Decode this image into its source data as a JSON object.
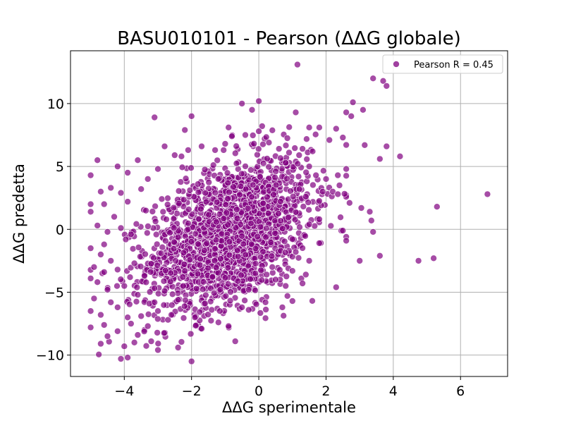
{
  "chart_data": {
    "type": "scatter",
    "title": "BASU010101 - Pearson (ΔΔG globale)",
    "xlabel": "ΔΔG sperimentale",
    "ylabel": "ΔΔG predetta",
    "xlim": [
      -5.6,
      7.4
    ],
    "ylim": [
      -11.7,
      14.2
    ],
    "xticks": [
      -4,
      -2,
      0,
      2,
      4,
      6
    ],
    "xtick_labels": [
      "−4",
      "−2",
      "0",
      "2",
      "4",
      "6"
    ],
    "yticks": [
      -10,
      -5,
      0,
      5,
      10
    ],
    "ytick_labels": [
      "−10",
      "−5",
      "0",
      "5",
      "10"
    ],
    "grid": true,
    "legend": {
      "position": "top-right",
      "entries": [
        "Pearson R = 0.45"
      ]
    },
    "point_color": "#800080",
    "point_opacity": 0.7,
    "dense_cloud": {
      "n": 1800,
      "center": [
        -0.9,
        -0.4
      ],
      "sd": [
        1.2,
        2.7
      ],
      "slope": 1.0
    },
    "points": [
      [
        1.15,
        13.1
      ],
      [
        2.8,
        10.1
      ],
      [
        3.4,
        12.0
      ],
      [
        3.7,
        11.8
      ],
      [
        3.8,
        11.4
      ],
      [
        2.6,
        9.3
      ],
      [
        2.75,
        9.0
      ],
      [
        3.1,
        9.5
      ],
      [
        -0.5,
        10.0
      ],
      [
        -0.2,
        9.5
      ],
      [
        0.0,
        10.2
      ],
      [
        -3.1,
        8.9
      ],
      [
        -2.0,
        9.0
      ],
      [
        0.1,
        8.2
      ],
      [
        -0.9,
        8.1
      ],
      [
        1.1,
        9.3
      ],
      [
        1.5,
        8.1
      ],
      [
        1.8,
        8.1
      ],
      [
        2.3,
        8.0
      ],
      [
        2.5,
        7.3
      ],
      [
        2.1,
        7.1
      ],
      [
        1.3,
        6.4
      ],
      [
        1.6,
        6.2
      ],
      [
        1.2,
        5.9
      ],
      [
        3.8,
        6.6
      ],
      [
        4.2,
        5.8
      ],
      [
        3.6,
        5.6
      ],
      [
        3.15,
        6.7
      ],
      [
        2.6,
        4.8
      ],
      [
        2.35,
        4.3
      ],
      [
        2.4,
        3.5
      ],
      [
        2.2,
        3.0
      ],
      [
        2.35,
        2.8
      ],
      [
        2.7,
        2.1
      ],
      [
        3.05,
        1.7
      ],
      [
        3.3,
        1.4
      ],
      [
        3.35,
        0.7
      ],
      [
        3.4,
        -0.2
      ],
      [
        2.6,
        -0.6
      ],
      [
        2.5,
        -0.1
      ],
      [
        2.6,
        -0.9
      ],
      [
        3.0,
        -2.5
      ],
      [
        3.6,
        -2.1
      ],
      [
        2.3,
        -4.6
      ],
      [
        4.75,
        -2.5
      ],
      [
        5.2,
        -2.3
      ],
      [
        5.3,
        1.8
      ],
      [
        6.8,
        2.8
      ],
      [
        -2.2,
        7.9
      ],
      [
        -2.8,
        6.6
      ],
      [
        -2.3,
        5.8
      ],
      [
        -3.0,
        4.8
      ],
      [
        -3.6,
        5.5
      ],
      [
        -4.2,
        5.0
      ],
      [
        -4.8,
        5.5
      ],
      [
        -3.9,
        4.5
      ],
      [
        -5.0,
        4.3
      ],
      [
        -4.7,
        3.0
      ],
      [
        -5.0,
        2.0
      ],
      [
        -4.6,
        2.0
      ],
      [
        -4.4,
        3.3
      ],
      [
        -4.1,
        2.9
      ],
      [
        -4.3,
        1.0
      ],
      [
        -5.0,
        1.4
      ],
      [
        -4.8,
        0.3
      ],
      [
        -4.5,
        -0.2
      ],
      [
        -5.0,
        -1.5
      ],
      [
        -4.6,
        -1.2
      ],
      [
        -4.7,
        -2.0
      ],
      [
        -4.4,
        -2.5
      ],
      [
        -4.9,
        -3.0
      ],
      [
        -4.6,
        -3.4
      ],
      [
        -5.0,
        -3.9
      ],
      [
        -4.8,
        -4.2
      ],
      [
        -4.5,
        -4.8
      ],
      [
        -4.9,
        -5.5
      ],
      [
        -4.4,
        -5.8
      ],
      [
        -5.0,
        -6.5
      ],
      [
        -4.7,
        -6.8
      ],
      [
        -5.0,
        -7.8
      ],
      [
        -4.6,
        -7.6
      ],
      [
        -4.5,
        -8.5
      ],
      [
        -4.7,
        -9.1
      ],
      [
        -4.0,
        -9.3
      ],
      [
        -3.9,
        -10.2
      ],
      [
        -4.1,
        -10.3
      ],
      [
        -2.0,
        -10.5
      ],
      [
        -3.7,
        -9.0
      ],
      [
        -3.2,
        -8.9
      ],
      [
        -3.0,
        -9.6
      ],
      [
        -2.4,
        -9.4
      ],
      [
        -3.6,
        -8.4
      ],
      [
        -4.2,
        -8.1
      ],
      [
        -3.8,
        -7.5
      ],
      [
        -3.3,
        -7.7
      ],
      [
        -2.7,
        -7.2
      ],
      [
        -3.9,
        -7.0
      ],
      [
        -3.5,
        -6.9
      ],
      [
        -4.2,
        -6.2
      ],
      [
        -3.0,
        -6.5
      ],
      [
        -2.6,
        -6.8
      ],
      [
        -1.9,
        -7.0
      ],
      [
        -1.2,
        -7.4
      ],
      [
        -0.9,
        -7.7
      ],
      [
        -0.7,
        -8.9
      ],
      [
        -1.7,
        -7.9
      ],
      [
        -0.3,
        -6.4
      ],
      [
        -0.5,
        -6.2
      ],
      [
        0.1,
        -5.6
      ],
      [
        0.2,
        -5.8
      ],
      [
        0.7,
        -6.2
      ],
      [
        1.0,
        -5.7
      ],
      [
        1.3,
        -4.3
      ],
      [
        1.4,
        -3.6
      ],
      [
        0.8,
        -4.5
      ],
      [
        0.5,
        -4.0
      ],
      [
        -0.3,
        -4.8
      ],
      [
        -0.1,
        -3.5
      ],
      [
        0.4,
        -3.0
      ],
      [
        1.0,
        -3.3
      ],
      [
        1.5,
        -2.5
      ],
      [
        1.1,
        -1.8
      ],
      [
        1.8,
        -1.1
      ],
      [
        1.5,
        0.4
      ],
      [
        1.8,
        0.8
      ],
      [
        1.4,
        2.6
      ],
      [
        1.9,
        3.0
      ],
      [
        2.0,
        4.0
      ],
      [
        1.7,
        4.3
      ],
      [
        1.5,
        5.0
      ],
      [
        0.8,
        5.3
      ],
      [
        0.9,
        6.1
      ],
      [
        0.6,
        6.4
      ],
      [
        0.3,
        6.9
      ],
      [
        0.0,
        7.8
      ],
      [
        -0.4,
        7.5
      ],
      [
        -1.0,
        6.8
      ],
      [
        -0.8,
        7.4
      ],
      [
        -1.3,
        6.3
      ],
      [
        -1.7,
        6.6
      ],
      [
        -2.1,
        6.3
      ],
      [
        -2.5,
        5.9
      ],
      [
        -3.3,
        4.0
      ],
      [
        -3.5,
        3.2
      ],
      [
        -3.9,
        2.2
      ],
      [
        -4.1,
        0.1
      ],
      [
        -3.8,
        -0.4
      ],
      [
        -3.7,
        -2.7
      ],
      [
        -3.4,
        -3.7
      ],
      [
        -4.2,
        -3.2
      ],
      [
        -4.0,
        -4.5
      ],
      [
        -3.6,
        -5.2
      ],
      [
        -3.1,
        -5.8
      ],
      [
        -2.8,
        -4.9
      ],
      [
        -2.4,
        -5.6
      ],
      [
        -1.6,
        -5.9
      ],
      [
        -1.4,
        -6.4
      ]
    ]
  }
}
